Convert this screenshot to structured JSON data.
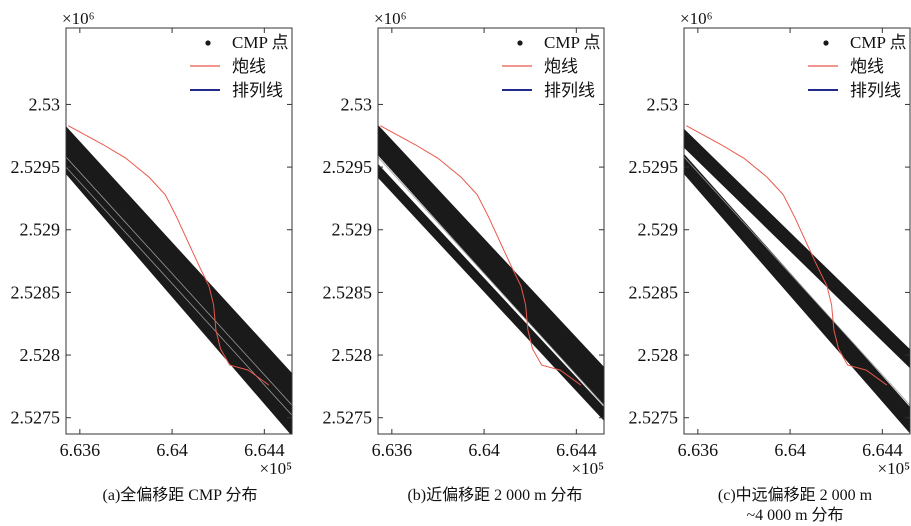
{
  "chart_data": [
    {
      "type": "scatter",
      "caption": "(a)全偏移距 CMP 分布",
      "multiplier_y": "×10⁶",
      "multiplier_x": "×10⁵",
      "xticks": [
        6.636,
        6.64,
        6.644
      ],
      "xtick_labels": [
        "6.636",
        "6.64",
        "6.644"
      ],
      "yticks": [
        2.53,
        2.5295,
        2.529,
        2.5285,
        2.528,
        2.5275
      ],
      "ytick_labels": [
        "2.53",
        "2.5295",
        "2.529",
        "2.5285",
        "2.528",
        "2.5275"
      ],
      "xlim": [
        6.6354,
        6.6452
      ],
      "ylim": [
        2.52737,
        2.53061
      ],
      "legend": [
        "CMP 点",
        "炮线",
        "排列线"
      ],
      "cmp_band": [
        [
          6.6354,
          2.52982
        ],
        [
          6.6354,
          2.52945
        ],
        [
          6.6452,
          2.52736
        ],
        [
          6.6452,
          2.52785
        ]
      ],
      "shot_line": [
        [
          6.6355,
          2.52983
        ],
        [
          6.637,
          2.52968
        ],
        [
          6.638,
          2.52957
        ],
        [
          6.639,
          2.52942
        ],
        [
          6.6397,
          2.52928
        ],
        [
          6.6402,
          2.5291
        ],
        [
          6.6407,
          2.5289
        ],
        [
          6.6412,
          2.5287
        ],
        [
          6.6416,
          2.52855
        ],
        [
          6.6418,
          2.5284
        ],
        [
          6.6419,
          2.5282
        ],
        [
          6.6421,
          2.52805
        ],
        [
          6.6425,
          2.52792
        ],
        [
          6.6433,
          2.52788
        ],
        [
          6.6442,
          2.52776
        ]
      ],
      "receiver_lines": [
        [
          [
            6.6354,
            2.52958
          ],
          [
            6.6452,
            2.5276
          ]
        ],
        [
          [
            6.6354,
            2.5295
          ],
          [
            6.6452,
            2.52752
          ]
        ]
      ]
    },
    {
      "type": "scatter",
      "caption": "(b)近偏移距 2 000 m 分布",
      "multiplier_y": "×10⁶",
      "multiplier_x": "×10⁵",
      "xticks": [
        6.636,
        6.64,
        6.644
      ],
      "xtick_labels": [
        "6.636",
        "6.64",
        "6.644"
      ],
      "yticks": [
        2.53,
        2.5295,
        2.529,
        2.5285,
        2.528,
        2.5275
      ],
      "ytick_labels": [
        "2.53",
        "2.5295",
        "2.529",
        "2.5285",
        "2.528",
        "2.5275"
      ],
      "xlim": [
        6.6354,
        6.6452
      ],
      "ylim": [
        2.52737,
        2.53061
      ],
      "legend": [
        "CMP 点",
        "炮线",
        "排列线"
      ],
      "cmp_bands": [
        [
          [
            6.6354,
            2.52983
          ],
          [
            6.6354,
            2.5296
          ],
          [
            6.6452,
            2.5276
          ],
          [
            6.6452,
            2.5279
          ]
        ],
        [
          [
            6.6354,
            2.52952
          ],
          [
            6.6354,
            2.52942
          ],
          [
            6.6452,
            2.52748
          ],
          [
            6.6452,
            2.52758
          ]
        ]
      ],
      "shot_line": [
        [
          6.6355,
          2.52983
        ],
        [
          6.637,
          2.52968
        ],
        [
          6.638,
          2.52957
        ],
        [
          6.639,
          2.52942
        ],
        [
          6.6397,
          2.52928
        ],
        [
          6.6402,
          2.5291
        ],
        [
          6.6407,
          2.5289
        ],
        [
          6.6412,
          2.5287
        ],
        [
          6.6416,
          2.52855
        ],
        [
          6.6418,
          2.5284
        ],
        [
          6.6419,
          2.5282
        ],
        [
          6.6421,
          2.52805
        ],
        [
          6.6425,
          2.52792
        ],
        [
          6.6433,
          2.52788
        ],
        [
          6.6442,
          2.52776
        ]
      ],
      "receiver_lines": [
        [
          [
            6.6354,
            2.52958
          ],
          [
            6.6452,
            2.5276
          ]
        ]
      ]
    },
    {
      "type": "scatter",
      "caption": "(c)中远偏移距 2 000 m",
      "caption2": "~4 000 m 分布",
      "multiplier_y": "×10⁶",
      "multiplier_x": "×10⁵",
      "xticks": [
        6.636,
        6.64,
        6.644
      ],
      "xtick_labels": [
        "6.636",
        "6.64",
        "6.644"
      ],
      "yticks": [
        2.53,
        2.5295,
        2.529,
        2.5285,
        2.528,
        2.5275
      ],
      "ytick_labels": [
        "2.53",
        "2.5295",
        "2.529",
        "2.5285",
        "2.528",
        "2.5275"
      ],
      "xlim": [
        6.6354,
        6.6452
      ],
      "ylim": [
        2.52737,
        2.53061
      ],
      "legend": [
        "CMP 点",
        "炮线",
        "排列线"
      ],
      "cmp_bands": [
        [
          [
            6.6354,
            2.5298
          ],
          [
            6.6354,
            2.52966
          ],
          [
            6.6452,
            2.5279
          ],
          [
            6.6452,
            2.52804
          ]
        ],
        [
          [
            6.6354,
            2.5296
          ],
          [
            6.6354,
            2.52945
          ],
          [
            6.6452,
            2.52738
          ],
          [
            6.6452,
            2.52758
          ]
        ]
      ],
      "shot_line": [
        [
          6.6355,
          2.52983
        ],
        [
          6.637,
          2.52968
        ],
        [
          6.638,
          2.52957
        ],
        [
          6.639,
          2.52942
        ],
        [
          6.6397,
          2.52928
        ],
        [
          6.6402,
          2.5291
        ],
        [
          6.6407,
          2.5289
        ],
        [
          6.6412,
          2.5287
        ],
        [
          6.6416,
          2.52855
        ],
        [
          6.6418,
          2.5284
        ],
        [
          6.6419,
          2.5282
        ],
        [
          6.6421,
          2.52805
        ],
        [
          6.6425,
          2.52792
        ],
        [
          6.6433,
          2.52788
        ],
        [
          6.6442,
          2.52776
        ]
      ],
      "receiver_lines": [
        [
          [
            6.6354,
            2.52958
          ],
          [
            6.6452,
            2.5276
          ]
        ]
      ]
    }
  ],
  "colors": {
    "cmp": "#1a1a1a",
    "shot": "#e8584a",
    "receiver": "#1f2a8a",
    "inner_line": "#9a9a9a"
  }
}
